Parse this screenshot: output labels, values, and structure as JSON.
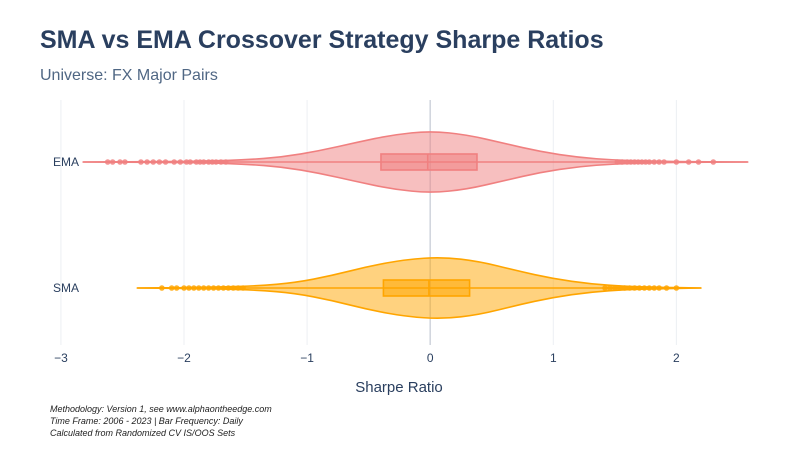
{
  "header": {
    "title": "SMA vs EMA Crossover Strategy Sharpe Ratios",
    "subtitle": "Universe: FX Major Pairs"
  },
  "footnotes": [
    "Methodology: Version 1, see www.alphaontheedge.com",
    "Time Frame: 2006 - 2023 | Bar Frequency: Daily",
    "Calculated from Randomized CV IS/OOS Sets"
  ],
  "chart_data": {
    "type": "violin",
    "orientation": "horizontal",
    "xlabel": "Sharpe Ratio",
    "ylabel": "",
    "xlim": [
      -3.17,
      2.72
    ],
    "xticks": [
      -3,
      -2,
      -1,
      0,
      1,
      2
    ],
    "xtick_labels": [
      "−3",
      "−2",
      "−1",
      "0",
      "1",
      "2"
    ],
    "grid": true,
    "legend": "none",
    "series": [
      {
        "name": "EMA",
        "color": "#F08080",
        "min": -2.82,
        "q1": -0.4,
        "median": -0.02,
        "q3": 0.38,
        "max": 2.58,
        "density": [
          [
            -2.82,
            0.0
          ],
          [
            -2.2,
            0.01
          ],
          [
            -1.8,
            0.03
          ],
          [
            -1.5,
            0.07
          ],
          [
            -1.2,
            0.16
          ],
          [
            -0.9,
            0.36
          ],
          [
            -0.6,
            0.63
          ],
          [
            -0.3,
            0.88
          ],
          [
            0.0,
            1.0
          ],
          [
            0.3,
            0.88
          ],
          [
            0.6,
            0.6
          ],
          [
            0.9,
            0.33
          ],
          [
            1.2,
            0.15
          ],
          [
            1.5,
            0.06
          ],
          [
            1.8,
            0.025
          ],
          [
            2.2,
            0.008
          ],
          [
            2.58,
            0.0
          ]
        ],
        "outliers_low": [
          -2.62,
          -2.58,
          -2.52,
          -2.48,
          -2.35,
          -2.3,
          -2.25,
          -2.2,
          -2.15,
          -2.08,
          -2.03,
          -1.98,
          -1.95,
          -1.9,
          -1.87,
          -1.84,
          -1.8,
          -1.77,
          -1.74,
          -1.7,
          -1.66
        ],
        "outliers_high": [
          1.52,
          1.56,
          1.6,
          1.63,
          1.66,
          1.69,
          1.72,
          1.75,
          1.78,
          1.82,
          1.86,
          1.9,
          2.0,
          2.1,
          2.18,
          2.3
        ]
      },
      {
        "name": "SMA",
        "color": "#FFA500",
        "min": -2.38,
        "q1": -0.38,
        "median": -0.01,
        "q3": 0.32,
        "max": 2.2,
        "density": [
          [
            -2.38,
            0.0
          ],
          [
            -2.0,
            0.01
          ],
          [
            -1.7,
            0.03
          ],
          [
            -1.4,
            0.07
          ],
          [
            -1.1,
            0.17
          ],
          [
            -0.8,
            0.4
          ],
          [
            -0.5,
            0.7
          ],
          [
            -0.2,
            0.92
          ],
          [
            0.1,
            1.0
          ],
          [
            0.4,
            0.86
          ],
          [
            0.7,
            0.56
          ],
          [
            1.0,
            0.3
          ],
          [
            1.3,
            0.13
          ],
          [
            1.6,
            0.05
          ],
          [
            1.9,
            0.018
          ],
          [
            2.2,
            0.0
          ]
        ],
        "outliers_low": [
          -2.18,
          -2.1,
          -2.06,
          -2.0,
          -1.96,
          -1.92,
          -1.88,
          -1.84,
          -1.8,
          -1.76,
          -1.72,
          -1.68,
          -1.64,
          -1.6,
          -1.56,
          -1.52
        ],
        "outliers_high": [
          1.42,
          1.46,
          1.5,
          1.54,
          1.58,
          1.62,
          1.66,
          1.7,
          1.74,
          1.78,
          1.82,
          1.86,
          1.92,
          2.0
        ]
      }
    ]
  }
}
